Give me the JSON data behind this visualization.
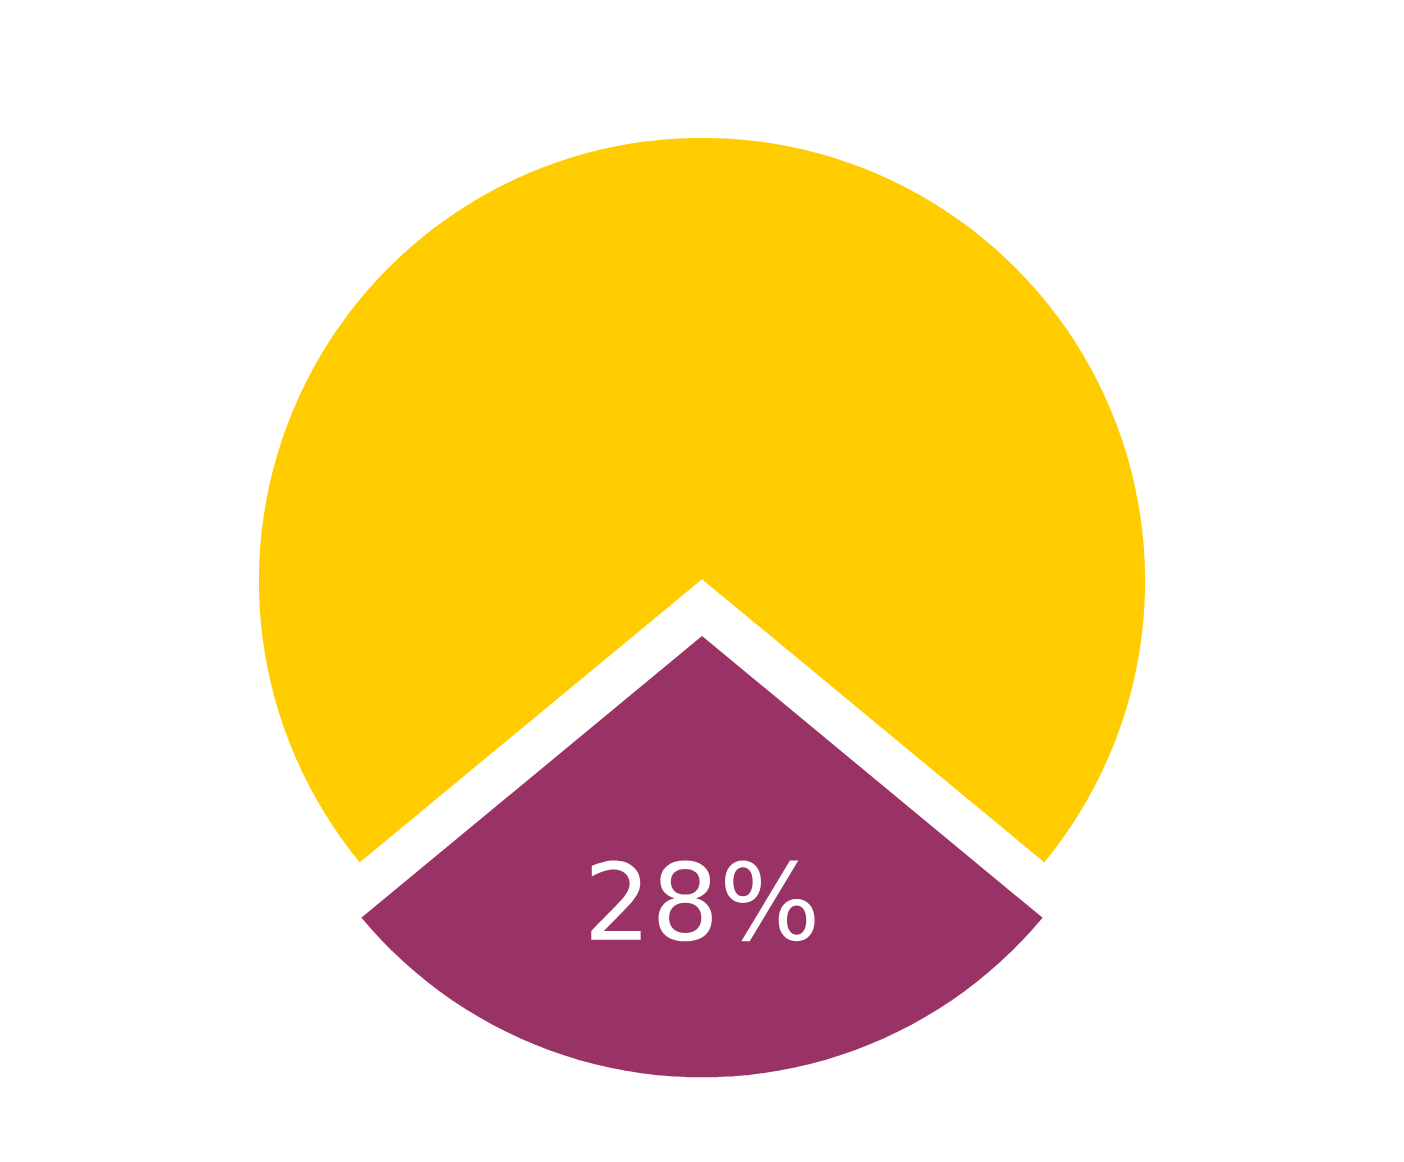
{
  "chart_data": {
    "type": "pie",
    "categories": [
      null,
      null
    ],
    "values": [
      72,
      28
    ],
    "colors": [
      "#ffcc00",
      "#993366"
    ],
    "value_labels": [
      null,
      "28%"
    ]
  }
}
